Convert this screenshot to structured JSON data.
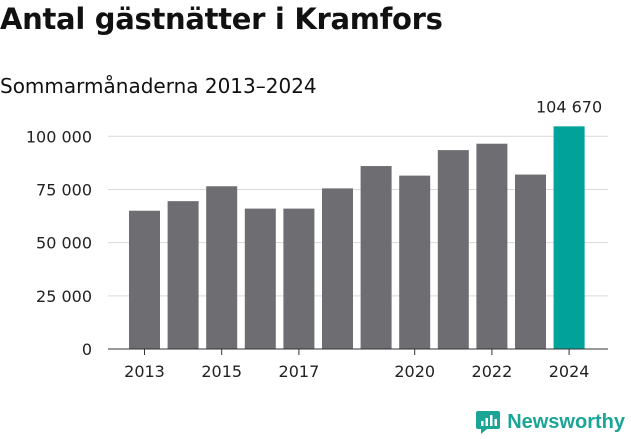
{
  "header": {
    "title": "Antal gästnätter i Kramfors",
    "subtitle": "Sommarmånaderna 2013–2024"
  },
  "brand": {
    "name": "Newsworthy",
    "icon": "newsworthy-logo-icon",
    "color": "#1ba596"
  },
  "chart_data": {
    "type": "bar",
    "categories": [
      "2013",
      "2014",
      "2015",
      "2016",
      "2017",
      "2018",
      "2019",
      "2020",
      "2021",
      "2022",
      "2023",
      "2024"
    ],
    "values": [
      65000,
      69500,
      76500,
      66000,
      66000,
      75500,
      86000,
      81500,
      93500,
      96500,
      82000,
      104670
    ],
    "x_tick_labels": [
      "2013",
      "2015",
      "2017",
      "2020",
      "2022",
      "2024"
    ],
    "y_tick_labels": [
      "0",
      "25 000",
      "50 000",
      "75 000",
      "100 000"
    ],
    "y_ticks": [
      0,
      25000,
      50000,
      75000,
      100000
    ],
    "ylim": [
      0,
      110000
    ],
    "data_labels": [
      {
        "category": "2024",
        "text": "104 670"
      }
    ],
    "title": "Antal gästnätter i Kramfors",
    "subtitle": "Sommarmånaderna 2013–2024",
    "xlabel": "",
    "ylabel": "",
    "grid": true,
    "colors": {
      "default": "#6e6d71",
      "highlight": "#00a29a",
      "grid": "#d9d9d9",
      "axis": "#333333"
    },
    "highlight_category": "2024"
  }
}
